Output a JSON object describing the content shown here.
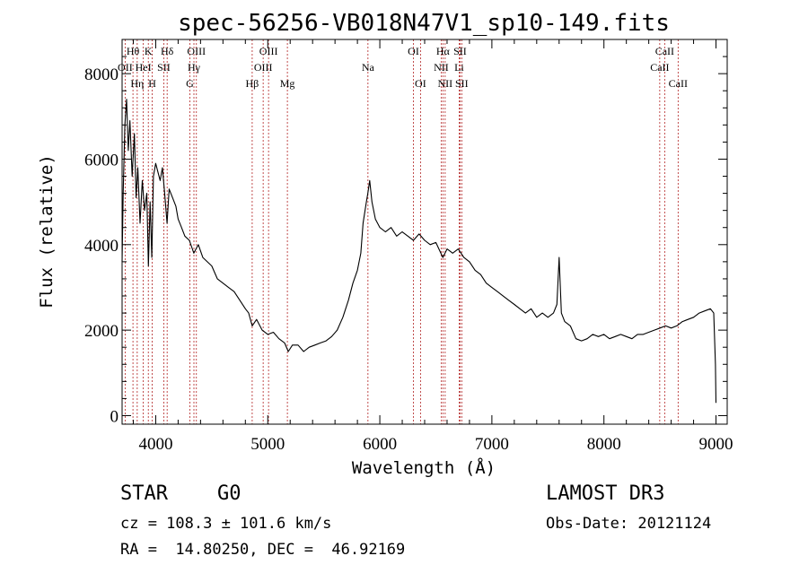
{
  "chart_data": {
    "type": "line",
    "title": "spec-56256-VB018N47V1_sp10-149.fits",
    "xlabel": "Wavelength (Å)",
    "ylabel": "Flux (relative)",
    "xlim": [
      3700,
      9100
    ],
    "ylim": [
      -200,
      8800
    ],
    "xticks": [
      4000,
      5000,
      6000,
      7000,
      8000,
      9000
    ],
    "yticks": [
      0,
      2000,
      4000,
      6000,
      8000
    ],
    "xticks_minor_step": 200,
    "yticks_minor_step": 400,
    "line_color": "#000000",
    "marker_color": "#b22222",
    "series": [
      {
        "name": "flux",
        "points": [
          [
            3700,
            3600
          ],
          [
            3710,
            5200
          ],
          [
            3725,
            6800
          ],
          [
            3740,
            7400
          ],
          [
            3755,
            6200
          ],
          [
            3770,
            6900
          ],
          [
            3790,
            5600
          ],
          [
            3810,
            6600
          ],
          [
            3825,
            5100
          ],
          [
            3840,
            5800
          ],
          [
            3860,
            4500
          ],
          [
            3880,
            5500
          ],
          [
            3900,
            4800
          ],
          [
            3920,
            5200
          ],
          [
            3935,
            3500
          ],
          [
            3950,
            5000
          ],
          [
            3965,
            3700
          ],
          [
            3980,
            5600
          ],
          [
            4000,
            5900
          ],
          [
            4020,
            5700
          ],
          [
            4040,
            5500
          ],
          [
            4060,
            5800
          ],
          [
            4080,
            5200
          ],
          [
            4101,
            4500
          ],
          [
            4120,
            5300
          ],
          [
            4150,
            5100
          ],
          [
            4180,
            4900
          ],
          [
            4200,
            4600
          ],
          [
            4230,
            4400
          ],
          [
            4260,
            4200
          ],
          [
            4300,
            4100
          ],
          [
            4340,
            3800
          ],
          [
            4380,
            4000
          ],
          [
            4420,
            3700
          ],
          [
            4460,
            3600
          ],
          [
            4500,
            3500
          ],
          [
            4550,
            3200
          ],
          [
            4600,
            3100
          ],
          [
            4650,
            3000
          ],
          [
            4700,
            2900
          ],
          [
            4750,
            2700
          ],
          [
            4800,
            2500
          ],
          [
            4830,
            2400
          ],
          [
            4861,
            2100
          ],
          [
            4900,
            2250
          ],
          [
            4950,
            2000
          ],
          [
            5000,
            1900
          ],
          [
            5050,
            1950
          ],
          [
            5100,
            1800
          ],
          [
            5150,
            1700
          ],
          [
            5183,
            1500
          ],
          [
            5220,
            1650
          ],
          [
            5270,
            1650
          ],
          [
            5320,
            1500
          ],
          [
            5370,
            1600
          ],
          [
            5420,
            1650
          ],
          [
            5470,
            1700
          ],
          [
            5520,
            1750
          ],
          [
            5570,
            1850
          ],
          [
            5620,
            2000
          ],
          [
            5670,
            2300
          ],
          [
            5720,
            2700
          ],
          [
            5760,
            3100
          ],
          [
            5800,
            3400
          ],
          [
            5830,
            3800
          ],
          [
            5850,
            4500
          ],
          [
            5880,
            5000
          ],
          [
            5893,
            5200
          ],
          [
            5910,
            5500
          ],
          [
            5930,
            5000
          ],
          [
            5960,
            4600
          ],
          [
            6000,
            4400
          ],
          [
            6050,
            4300
          ],
          [
            6100,
            4400
          ],
          [
            6150,
            4200
          ],
          [
            6200,
            4300
          ],
          [
            6250,
            4200
          ],
          [
            6300,
            4100
          ],
          [
            6350,
            4250
          ],
          [
            6400,
            4100
          ],
          [
            6450,
            4000
          ],
          [
            6500,
            4050
          ],
          [
            6563,
            3700
          ],
          [
            6600,
            3900
          ],
          [
            6650,
            3800
          ],
          [
            6700,
            3900
          ],
          [
            6750,
            3700
          ],
          [
            6800,
            3600
          ],
          [
            6850,
            3400
          ],
          [
            6900,
            3300
          ],
          [
            6950,
            3100
          ],
          [
            7000,
            3000
          ],
          [
            7050,
            2900
          ],
          [
            7100,
            2800
          ],
          [
            7150,
            2700
          ],
          [
            7200,
            2600
          ],
          [
            7250,
            2500
          ],
          [
            7300,
            2400
          ],
          [
            7350,
            2500
          ],
          [
            7400,
            2300
          ],
          [
            7450,
            2400
          ],
          [
            7500,
            2300
          ],
          [
            7550,
            2400
          ],
          [
            7580,
            2600
          ],
          [
            7600,
            3700
          ],
          [
            7620,
            2400
          ],
          [
            7650,
            2200
          ],
          [
            7700,
            2100
          ],
          [
            7750,
            1800
          ],
          [
            7800,
            1750
          ],
          [
            7850,
            1800
          ],
          [
            7900,
            1900
          ],
          [
            7950,
            1850
          ],
          [
            8000,
            1900
          ],
          [
            8050,
            1800
          ],
          [
            8100,
            1850
          ],
          [
            8150,
            1900
          ],
          [
            8200,
            1850
          ],
          [
            8250,
            1800
          ],
          [
            8300,
            1900
          ],
          [
            8350,
            1900
          ],
          [
            8400,
            1950
          ],
          [
            8450,
            2000
          ],
          [
            8500,
            2050
          ],
          [
            8550,
            2100
          ],
          [
            8600,
            2050
          ],
          [
            8650,
            2100
          ],
          [
            8700,
            2200
          ],
          [
            8750,
            2250
          ],
          [
            8800,
            2300
          ],
          [
            8850,
            2400
          ],
          [
            8900,
            2450
          ],
          [
            8950,
            2500
          ],
          [
            8980,
            2400
          ],
          [
            8995,
            1200
          ],
          [
            9000,
            300
          ]
        ]
      }
    ],
    "spectral_lines": [
      {
        "label": "Hθ",
        "x": 3797,
        "row": 0
      },
      {
        "label": "OII",
        "x": 3727,
        "row": 1
      },
      {
        "label": "Hη",
        "x": 3835,
        "row": 2
      },
      {
        "label": "HeI",
        "x": 3889,
        "row": 1
      },
      {
        "label": "K",
        "x": 3934,
        "row": 0
      },
      {
        "label": "SII",
        "x": 4072,
        "row": 1
      },
      {
        "label": "H",
        "x": 3969,
        "row": 2
      },
      {
        "label": "Hδ",
        "x": 4102,
        "row": 0
      },
      {
        "label": "OIII",
        "x": 4363,
        "row": 0
      },
      {
        "label": "Hγ",
        "x": 4341,
        "row": 1
      },
      {
        "label": "G",
        "x": 4305,
        "row": 2
      },
      {
        "label": "Hβ",
        "x": 4861,
        "row": 2
      },
      {
        "label": "OIII",
        "x": 5007,
        "row": 0
      },
      {
        "label": "OIII",
        "x": 4959,
        "row": 1
      },
      {
        "label": "Mg",
        "x": 5175,
        "row": 2
      },
      {
        "label": "Na",
        "x": 5894,
        "row": 1
      },
      {
        "label": "OI",
        "x": 6300,
        "row": 0
      },
      {
        "label": "OI",
        "x": 6363,
        "row": 2
      },
      {
        "label": "Hα",
        "x": 6563,
        "row": 0
      },
      {
        "label": "NII",
        "x": 6548,
        "row": 1
      },
      {
        "label": "NII",
        "x": 6583,
        "row": 2
      },
      {
        "label": "SII",
        "x": 6716,
        "row": 0
      },
      {
        "label": "Li",
        "x": 6708,
        "row": 1
      },
      {
        "label": "SII",
        "x": 6731,
        "row": 2
      },
      {
        "label": "CaII",
        "x": 8542,
        "row": 0
      },
      {
        "label": "CaII",
        "x": 8498,
        "row": 1
      },
      {
        "label": "CaII",
        "x": 8662,
        "row": 2
      }
    ]
  },
  "info": {
    "object_class": "STAR",
    "subclass": "G0",
    "survey": "LAMOST DR3",
    "cz": "cz = 108.3 ± 101.6 km/s",
    "obs_date": "Obs-Date: 20121124",
    "coords": "RA =  14.80250, DEC =  46.92169"
  }
}
